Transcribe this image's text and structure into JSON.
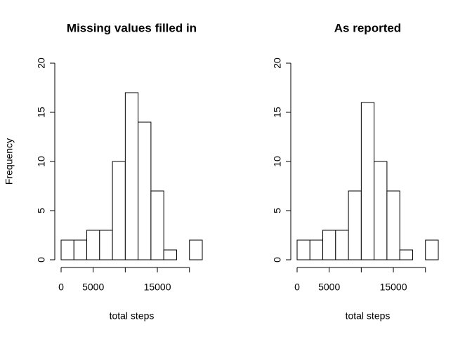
{
  "chart_data": [
    {
      "type": "histogram",
      "title": "Missing values filled in",
      "xlabel": "total steps",
      "ylabel": "Frequency",
      "bins": [
        0,
        2000,
        4000,
        6000,
        8000,
        10000,
        12000,
        14000,
        16000,
        18000,
        20000,
        22000
      ],
      "values": [
        2,
        2,
        3,
        3,
        10,
        17,
        14,
        7,
        1,
        0,
        2
      ],
      "color": "#ffffff",
      "ylim": [
        0,
        20
      ],
      "yticks": [
        0,
        5,
        10,
        15,
        20
      ],
      "xlim": [
        0,
        22000
      ],
      "xticks": [
        0,
        5000,
        15000
      ],
      "minor_xticks": [
        10000,
        20000
      ]
    },
    {
      "type": "histogram",
      "title": "As reported",
      "xlabel": "total steps",
      "bins": [
        0,
        2000,
        4000,
        6000,
        8000,
        10000,
        12000,
        14000,
        16000,
        18000,
        20000,
        22000
      ],
      "values": [
        2,
        2,
        3,
        3,
        7,
        16,
        10,
        7,
        1,
        0,
        2
      ],
      "color": "#ffffff",
      "ylim": [
        0,
        20
      ],
      "yticks": [
        0,
        5,
        10,
        15,
        20
      ],
      "xlim": [
        0,
        22000
      ],
      "xticks": [
        0,
        5000,
        15000
      ],
      "minor_xticks": [
        10000,
        20000
      ]
    }
  ]
}
